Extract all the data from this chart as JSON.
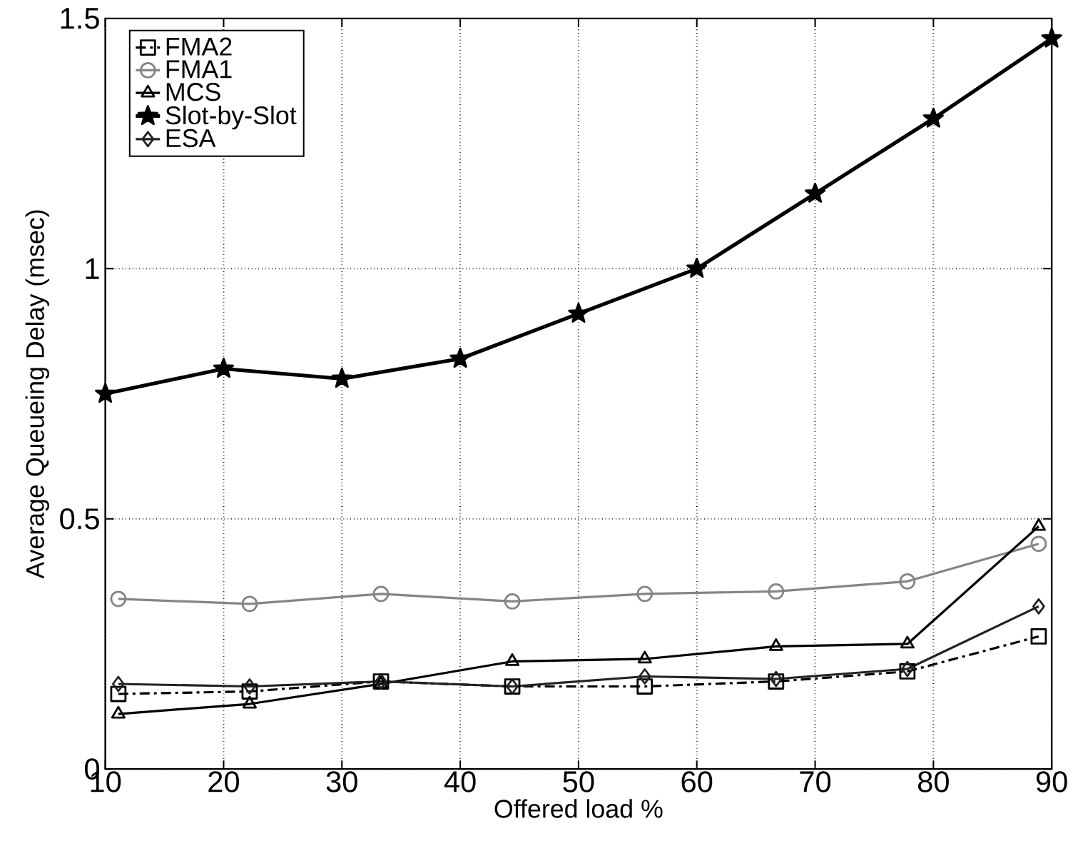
{
  "chart_data": {
    "type": "line",
    "xlabel": "Offered load %",
    "ylabel": "Average Queueing Delay (msec)",
    "xlim": [
      10,
      90
    ],
    "ylim": [
      0,
      1.5
    ],
    "xticks": [
      10,
      20,
      30,
      40,
      50,
      60,
      70,
      80,
      90
    ],
    "yticks": [
      0,
      0.5,
      1,
      1.5
    ],
    "grid": true,
    "legend": "top left",
    "series": [
      {
        "name": "FMA2",
        "color": "#000000",
        "marker": "square",
        "line_style": "dashdot",
        "x": [
          11.1,
          22.2,
          33.3,
          44.4,
          55.6,
          66.7,
          77.8,
          88.9
        ],
        "values": [
          0.15,
          0.155,
          0.175,
          0.165,
          0.165,
          0.175,
          0.195,
          0.265
        ]
      },
      {
        "name": "FMA1",
        "color": "#858585",
        "marker": "circle",
        "line_style": "solid",
        "x": [
          11.1,
          22.2,
          33.3,
          44.4,
          55.6,
          66.7,
          77.8,
          88.9
        ],
        "values": [
          0.34,
          0.33,
          0.35,
          0.335,
          0.35,
          0.355,
          0.375,
          0.45
        ]
      },
      {
        "name": "MCS",
        "color": "#000000",
        "marker": "triangle",
        "line_style": "solid",
        "x": [
          11.1,
          22.2,
          33.3,
          44.4,
          55.6,
          66.7,
          77.8,
          88.9
        ],
        "values": [
          0.11,
          0.13,
          0.17,
          0.215,
          0.22,
          0.245,
          0.25,
          0.485
        ]
      },
      {
        "name": "Slot-by-Slot",
        "color": "#000000",
        "marker": "star",
        "line_style": "solid",
        "x": [
          10,
          20,
          30,
          40,
          50,
          60,
          70,
          80,
          90
        ],
        "values": [
          0.75,
          0.8,
          0.78,
          0.82,
          0.91,
          1.0,
          1.15,
          1.3,
          1.46
        ]
      },
      {
        "name": "ESA",
        "color": "#222222",
        "marker": "diamond",
        "line_style": "solid",
        "x": [
          11.1,
          22.2,
          33.3,
          44.4,
          55.6,
          66.7,
          77.8,
          88.9
        ],
        "values": [
          0.17,
          0.165,
          0.175,
          0.165,
          0.185,
          0.18,
          0.2,
          0.325
        ]
      }
    ]
  }
}
